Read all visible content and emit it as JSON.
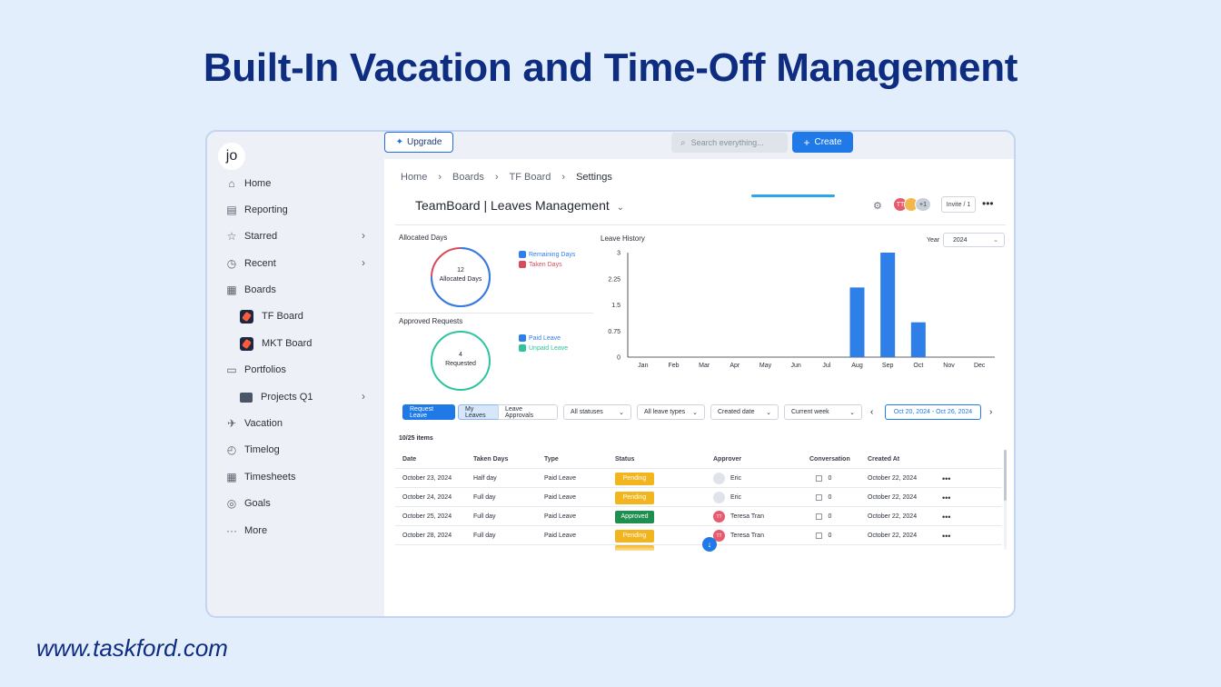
{
  "headline": "Built-In Vacation and Time-Off Management",
  "footer_url": "www.taskford.com",
  "sidebar": {
    "logo": "jo",
    "items": [
      {
        "label": "Home",
        "icon": "home-icon",
        "glyph": "⌂"
      },
      {
        "label": "Reporting",
        "icon": "report-icon",
        "glyph": "▤"
      },
      {
        "label": "Starred",
        "icon": "star-icon",
        "glyph": "☆"
      },
      {
        "label": "Recent",
        "icon": "clock-history-icon",
        "glyph": "◷"
      },
      {
        "label": "Boards",
        "icon": "board-icon",
        "glyph": "▦"
      },
      {
        "label": "TF Board",
        "icon": "rocket-icon"
      },
      {
        "label": "MKT Board",
        "icon": "rocket-icon"
      },
      {
        "label": "Portfolios",
        "icon": "folder-icon",
        "glyph": "▭"
      },
      {
        "label": "Projects Q1",
        "icon": "project-icon"
      },
      {
        "label": "Vacation",
        "icon": "plane-icon",
        "glyph": "✈"
      },
      {
        "label": "Timelog",
        "icon": "timer-icon",
        "glyph": "◴"
      },
      {
        "label": "Timesheets",
        "icon": "grid-icon",
        "glyph": "▦"
      },
      {
        "label": "Goals",
        "icon": "target-icon",
        "glyph": "◎"
      },
      {
        "label": "More",
        "icon": "more-icon",
        "glyph": "···"
      }
    ]
  },
  "topbar": {
    "upgrade_label": "Upgrade",
    "search_placeholder": "Search everything...",
    "create_label": "Create"
  },
  "breadcrumb": [
    "Home",
    "Boards",
    "TF Board",
    "Settings"
  ],
  "board": {
    "title": "TeamBoard | Leaves Management",
    "avatars": [
      {
        "initials": "TT",
        "color": "#e85a6e"
      },
      {
        "initials": "",
        "color": "#f2b84b"
      },
      {
        "initials": "+1",
        "color": "#c9cfd8"
      }
    ],
    "invite_label": "Invite / 1"
  },
  "allocated": {
    "title": "Allocated Days",
    "value": "12",
    "label": "Allocated Days",
    "legend": [
      {
        "name": "Remaining Days",
        "color": "#2f7fe8"
      },
      {
        "name": "Taken Days",
        "color": "#d94a5a"
      }
    ],
    "remaining_fraction": 0.75
  },
  "approved": {
    "title": "Approved Requests",
    "value": "4",
    "label": "Requested",
    "legend": [
      {
        "name": "Paid Leave",
        "color": "#2f7fe8"
      },
      {
        "name": "Unpaid Leave",
        "color": "#2ec4a0"
      }
    ],
    "paid_fraction": 0.0
  },
  "chart_data": {
    "type": "bar",
    "title": "Leave History",
    "categories": [
      "Jan",
      "Feb",
      "Mar",
      "Apr",
      "May",
      "Jun",
      "Jul",
      "Aug",
      "Sep",
      "Oct",
      "Nov",
      "Dec"
    ],
    "values": [
      0,
      0,
      0,
      0,
      0,
      0,
      0,
      2,
      3,
      1,
      0,
      0
    ],
    "yticks": [
      "0",
      "0.75",
      "1.5",
      "2.25",
      "3"
    ],
    "ylim": [
      0,
      3
    ],
    "color": "#2f7fe8",
    "year_label": "Year",
    "year_value": "2024"
  },
  "filters": {
    "request_leave": "Request Leave",
    "my_leaves": "My Leaves",
    "leave_approvals": "Leave Approvals",
    "statuses": "All statuses",
    "leave_types": "All leave types",
    "created_date": "Created date",
    "current_week": "Current week",
    "date_range": "Oct 20, 2024 - Oct 26, 2024"
  },
  "table": {
    "count": "10/25 items",
    "columns": [
      "Date",
      "Taken Days",
      "Type",
      "Status",
      "Approver",
      "Conversation",
      "Created At"
    ],
    "rows": [
      {
        "date": "October 23, 2024",
        "taken": "Half day",
        "type": "Paid Leave",
        "status": "Pending",
        "approver": "Eric",
        "conv": "0",
        "created": "October 22, 2024"
      },
      {
        "date": "October 24, 2024",
        "taken": "Full day",
        "type": "Paid Leave",
        "status": "Pending",
        "approver": "Eric",
        "conv": "0",
        "created": "October 22, 2024"
      },
      {
        "date": "October 25, 2024",
        "taken": "Full day",
        "type": "Paid Leave",
        "status": "Approved",
        "approver": "Teresa Tran",
        "conv": "0",
        "created": "October 22, 2024"
      },
      {
        "date": "October 28, 2024",
        "taken": "Full day",
        "type": "Paid Leave",
        "status": "Pending",
        "approver": "Teresa Tran",
        "conv": "0",
        "created": "October 22, 2024"
      }
    ],
    "status_colors": {
      "Pending": "#f2b51e",
      "Approved": "#1f8f4f"
    }
  }
}
